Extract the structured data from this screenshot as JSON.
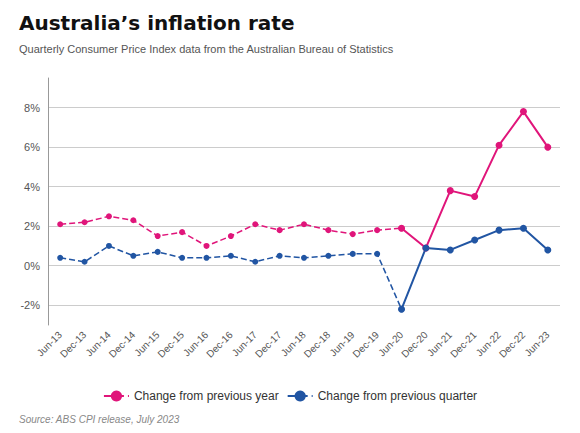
{
  "chart_data": {
    "type": "line",
    "title": "Australia’s inflation rate",
    "subtitle": "Quarterly Consumer Price Index data from the Australian Bureau of Statistics",
    "source": "Source: ABS CPI release, July 2023",
    "categories": [
      "Jun-13",
      "Dec-13",
      "Jun-14",
      "Dec-14",
      "Jun-15",
      "Dec-15",
      "Jun-16",
      "Dec-16",
      "Jun-17",
      "Dec-17",
      "Jun-18",
      "Dec-18",
      "Jun-19",
      "Dec-19",
      "Jun-20",
      "Dec-20",
      "Jun-21",
      "Dec-21",
      "Jun-22",
      "Dec-22",
      "Jun-23"
    ],
    "series": [
      {
        "name": "Change from previous year",
        "color": "#e0157a",
        "line_style": "dashed",
        "marker": "circle",
        "values": [
          2.1,
          2.2,
          2.5,
          2.3,
          1.5,
          1.7,
          1.0,
          1.5,
          2.1,
          1.8,
          2.1,
          1.8,
          1.6,
          1.8,
          1.9,
          null,
          null,
          null,
          null,
          null,
          null
        ]
      },
      {
        "name": "Change from previous year",
        "color": "#e0157a",
        "line_style": "solid",
        "marker": "circle",
        "values": [
          null,
          null,
          null,
          null,
          null,
          null,
          null,
          null,
          null,
          null,
          null,
          null,
          null,
          null,
          1.9,
          0.9,
          3.8,
          3.5,
          6.1,
          7.8,
          6.0
        ]
      },
      {
        "name": "Change from previous quarter",
        "color": "#2155a3",
        "line_style": "dashed",
        "marker": "circle",
        "values": [
          0.4,
          0.2,
          1.0,
          0.5,
          0.7,
          0.4,
          0.4,
          0.5,
          0.2,
          0.5,
          0.4,
          0.5,
          0.6,
          0.6,
          -2.2,
          null,
          null,
          null,
          null,
          null,
          null
        ]
      },
      {
        "name": "Change from previous quarter",
        "color": "#2155a3",
        "line_style": "solid",
        "marker": "circle",
        "values": [
          null,
          null,
          null,
          null,
          null,
          null,
          null,
          null,
          null,
          null,
          null,
          null,
          null,
          null,
          -2.2,
          0.9,
          0.8,
          1.3,
          1.8,
          1.9,
          0.8
        ]
      }
    ],
    "ylim": [
      -3.0,
      9.5
    ],
    "yticks": [
      {
        "value": -2,
        "label": "-2%"
      },
      {
        "value": 0,
        "label": "0%"
      },
      {
        "value": 2,
        "label": "2%"
      },
      {
        "value": 4,
        "label": "4%"
      },
      {
        "value": 6,
        "label": "6%"
      },
      {
        "value": 8,
        "label": "8%"
      }
    ],
    "grid": true,
    "legend": "bottom"
  }
}
